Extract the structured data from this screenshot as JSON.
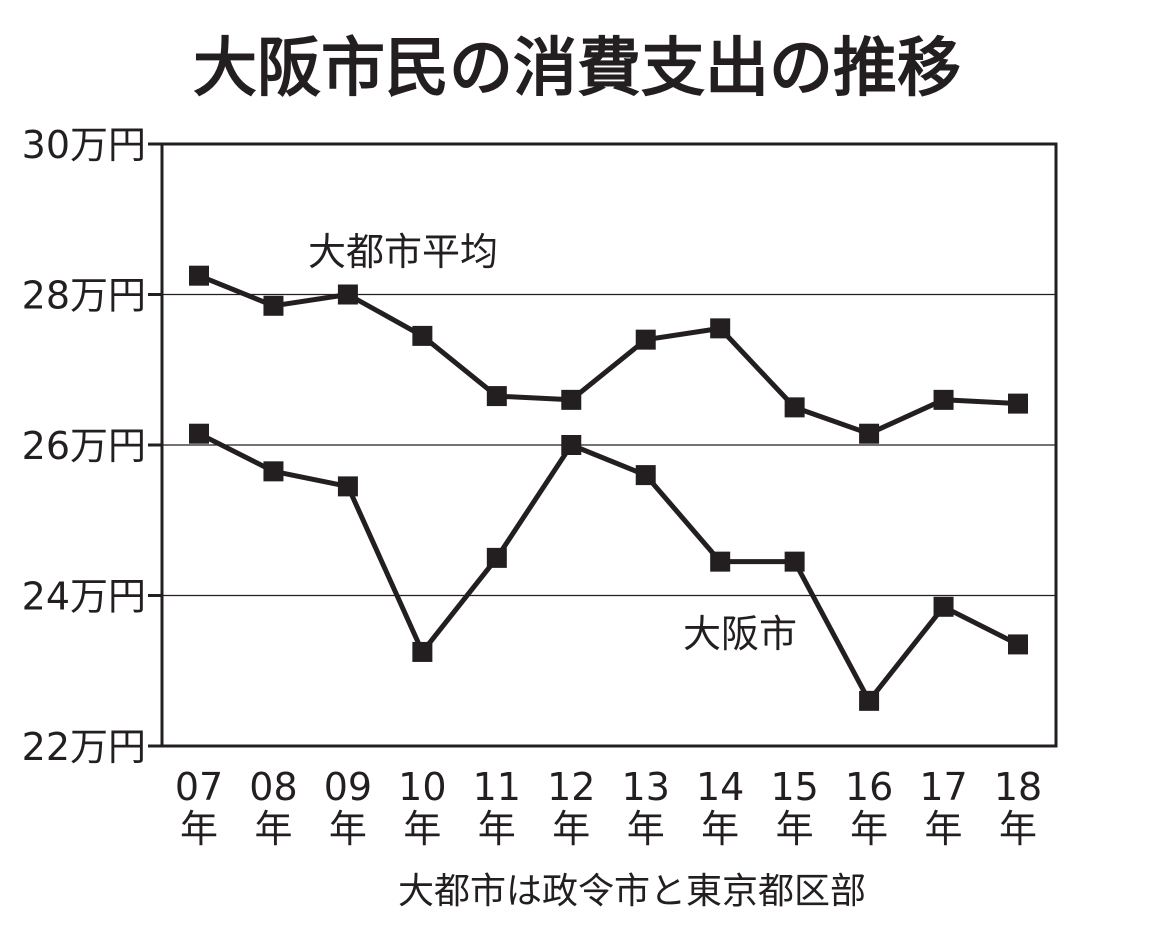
{
  "chart_data": {
    "type": "line",
    "title": "大阪市民の消費支出の推移",
    "subtitle": "",
    "xlabel": "",
    "ylabel": "",
    "categories": [
      "07\n年",
      "08\n年",
      "09\n年",
      "10\n年",
      "11\n年",
      "12\n年",
      "13\n年",
      "14\n年",
      "15\n年",
      "16\n年",
      "17\n年",
      "18\n年"
    ],
    "y_tick_labels": [
      "30万円",
      "28万円",
      "26万円",
      "24万円",
      "22万円"
    ],
    "y_ticks": [
      30,
      28,
      26,
      24,
      22
    ],
    "ylim": [
      22,
      30
    ],
    "y_unit": "万円",
    "grid": "horizontal",
    "series": [
      {
        "name": "大都市平均",
        "values": [
          28.25,
          27.85,
          28.0,
          27.45,
          26.65,
          26.6,
          27.4,
          27.55,
          26.5,
          26.15,
          26.6,
          26.55
        ]
      },
      {
        "name": "大阪市",
        "values": [
          26.15,
          25.65,
          25.45,
          23.25,
          24.5,
          26.0,
          25.6,
          24.45,
          24.45,
          22.6,
          23.85,
          23.35
        ]
      }
    ],
    "note": "大都市は政令市と東京都区部"
  },
  "colors": {
    "ink": "#231f20",
    "grid": "#231f20",
    "background": "#ffffff"
  }
}
